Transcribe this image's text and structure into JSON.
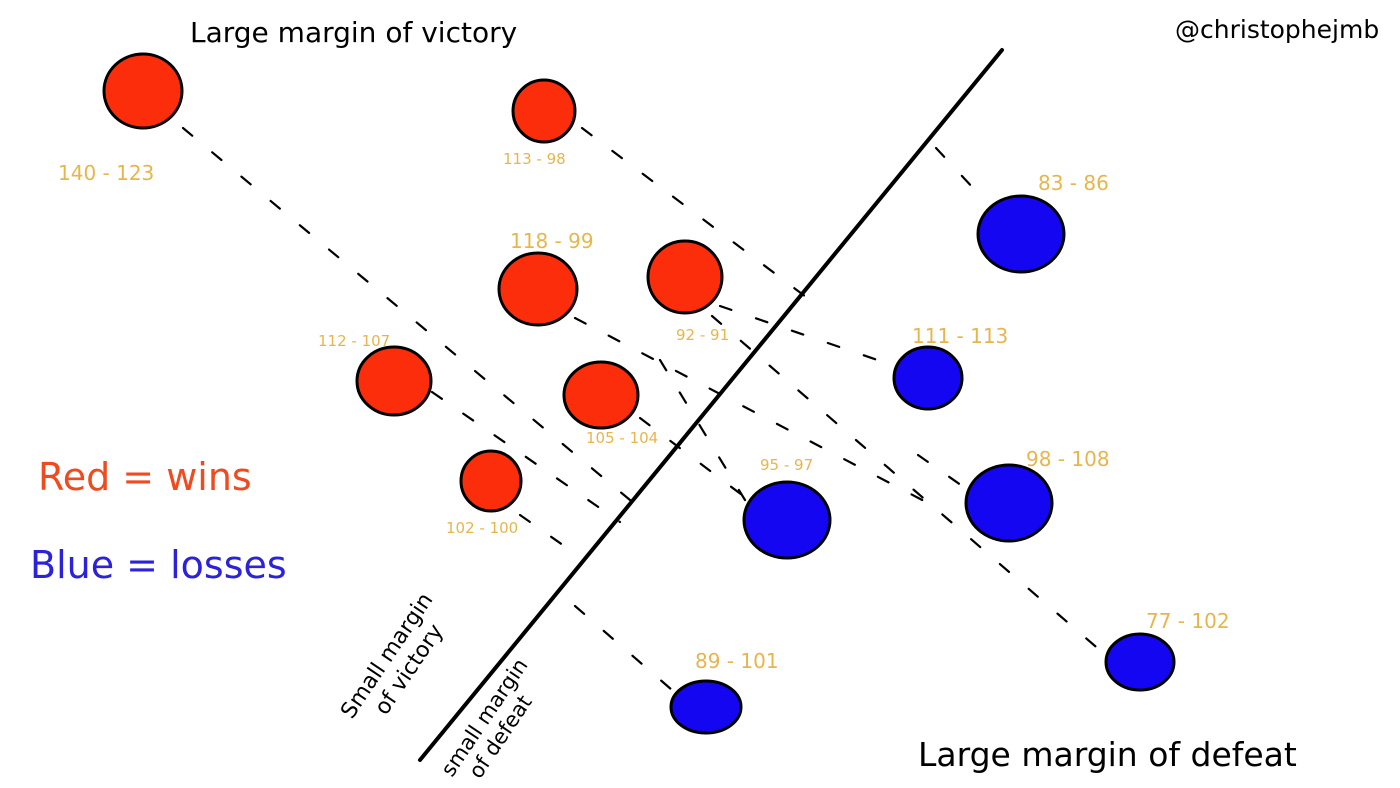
{
  "header": {
    "top_title": "Large margin of victory",
    "handle": "@christophejmb",
    "bottom_title": "Large margin of defeat"
  },
  "legend": {
    "wins": "Red = wins",
    "losses": "Blue = losses"
  },
  "divider_labels": {
    "small_victory_line1": "Small margin",
    "small_victory_line2": "of victory",
    "small_defeat_line1": "small margin",
    "small_defeat_line2": "of defeat"
  },
  "colors": {
    "win": "#fb2d0a",
    "loss": "#1406f0",
    "score_text": "#e8b54c",
    "ink": "#000000",
    "legend_win_text": "#f04a1f",
    "legend_loss_text": "#2b22d9"
  },
  "games": [
    {
      "id": "g1",
      "result": "win",
      "score": "140 - 123"
    },
    {
      "id": "g2",
      "result": "win",
      "score": "113 - 98"
    },
    {
      "id": "g3",
      "result": "win",
      "score": "118 - 99"
    },
    {
      "id": "g4",
      "result": "win",
      "score": "92 - 91"
    },
    {
      "id": "g5",
      "result": "win",
      "score": "112 - 107"
    },
    {
      "id": "g6",
      "result": "win",
      "score": "105 - 104"
    },
    {
      "id": "g7",
      "result": "win",
      "score": "102 - 100"
    },
    {
      "id": "g8",
      "result": "loss",
      "score": "83 - 86"
    },
    {
      "id": "g9",
      "result": "loss",
      "score": "111 - 113"
    },
    {
      "id": "g10",
      "result": "loss",
      "score": "95 - 97"
    },
    {
      "id": "g11",
      "result": "loss",
      "score": "98 - 108"
    },
    {
      "id": "g12",
      "result": "loss",
      "score": "89 - 101"
    },
    {
      "id": "g13",
      "result": "loss",
      "score": "77 - 102"
    }
  ]
}
